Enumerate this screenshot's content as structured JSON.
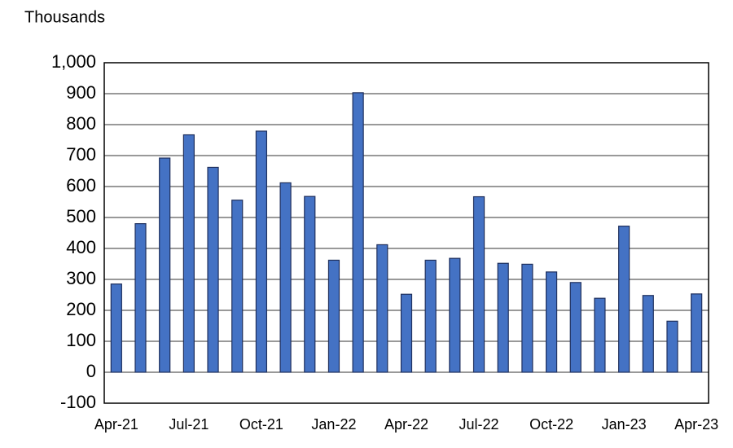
{
  "chart_data": {
    "type": "bar",
    "y_label": "Thousands",
    "categories": [
      "Apr-21",
      null,
      null,
      "Jul-21",
      null,
      null,
      "Oct-21",
      null,
      null,
      "Jan-22",
      null,
      null,
      "Apr-22",
      null,
      null,
      "Jul-22",
      null,
      null,
      "Oct-22",
      null,
      null,
      "Jan-23",
      null,
      null,
      "Apr-23"
    ],
    "values": [
      285,
      480,
      692,
      767,
      662,
      556,
      779,
      612,
      568,
      362,
      903,
      412,
      252,
      362,
      368,
      567,
      352,
      349,
      324,
      290,
      239,
      472,
      248,
      165,
      253
    ],
    "color": "#4472c4",
    "ylim": [
      -100,
      1000
    ],
    "yticks": [
      -100,
      0,
      100,
      200,
      300,
      400,
      500,
      600,
      700,
      800,
      900,
      {
        "value": 1000,
        "label": "1,000"
      }
    ],
    "grid": true
  }
}
